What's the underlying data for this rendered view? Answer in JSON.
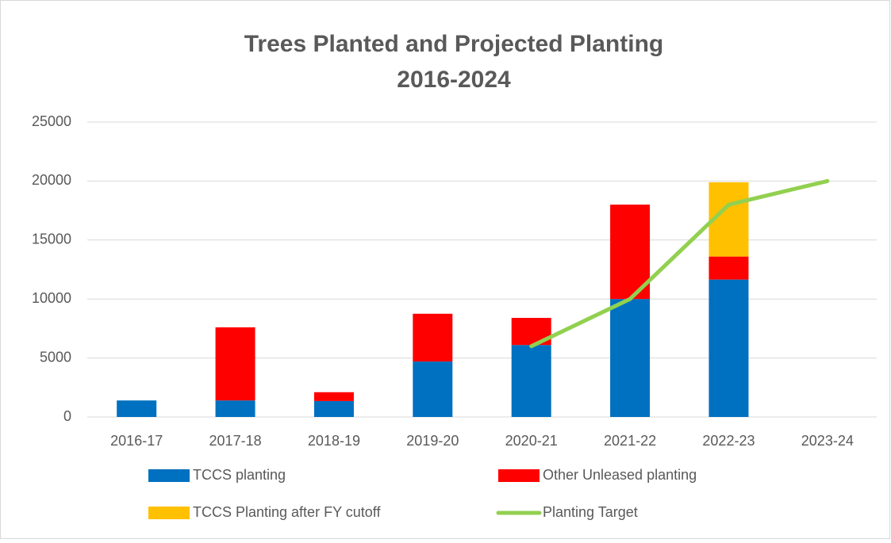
{
  "chart_data": {
    "type": "bar",
    "stacked": true,
    "title": "Trees Planted and Projected Planting",
    "subtitle": "2016-2024",
    "categories": [
      "2016-17",
      "2017-18",
      "2018-19",
      "2019-20",
      "2020-21",
      "2021-22",
      "2022-23",
      "2023-24"
    ],
    "series": [
      {
        "name": "TCCS planting",
        "color": "#0070c0",
        "type": "bar",
        "values": [
          1400,
          1400,
          1350,
          4700,
          6100,
          10000,
          11650,
          null
        ]
      },
      {
        "name": "Other Unleased planting",
        "color": "#ff0000",
        "type": "bar",
        "values": [
          null,
          6200,
          750,
          4050,
          2300,
          8000,
          1950,
          null
        ]
      },
      {
        "name": "TCCS Planting after FY cutoff",
        "color": "#ffc000",
        "type": "bar",
        "values": [
          null,
          null,
          null,
          null,
          null,
          null,
          6300,
          null
        ]
      },
      {
        "name": "Planting Target",
        "color": "#92d050",
        "type": "line",
        "values": [
          null,
          null,
          null,
          null,
          6000,
          10000,
          18000,
          20000
        ]
      }
    ],
    "ylim": [
      0,
      25000
    ],
    "yticks": [
      0,
      5000,
      10000,
      15000,
      20000,
      25000
    ],
    "grid": true,
    "legend": "bottom"
  }
}
